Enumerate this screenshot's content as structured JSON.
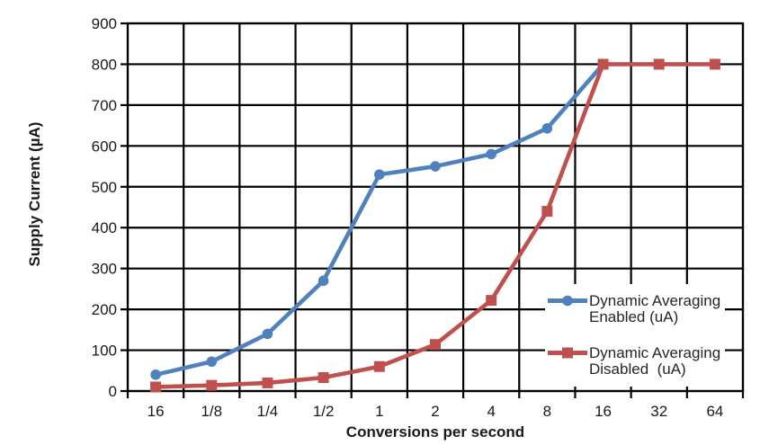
{
  "chart_data": {
    "type": "line",
    "title": "",
    "xlabel": "Conversions per second",
    "ylabel": "Supply Current (µA)",
    "categories": [
      "16",
      "1/8",
      "1/4",
      "1/2",
      "1",
      "2",
      "4",
      "8",
      "16",
      "32",
      "64"
    ],
    "ylim": [
      0,
      900
    ],
    "ytick_step": 100,
    "grid": true,
    "gridline_color": "#000000",
    "background_color": "#ffffff",
    "legend_position": "inside-right",
    "series": [
      {
        "name": "Dynamic Averaging Enabled (uA)",
        "legend_lines": [
          "Dynamic Averaging",
          "Enabled (uA)"
        ],
        "color": "#4F81BD",
        "marker": "circle",
        "values": [
          40,
          72,
          140,
          270,
          530,
          550,
          580,
          643,
          800,
          null,
          null
        ]
      },
      {
        "name": "Dynamic Averaging Disabled (uA)",
        "legend_lines": [
          "Dynamic Averaging",
          "Disabled  (uA)"
        ],
        "color": "#C0504D",
        "marker": "square",
        "values": [
          10,
          14,
          20,
          33,
          60,
          114,
          222,
          440,
          800,
          800,
          800
        ]
      }
    ]
  }
}
